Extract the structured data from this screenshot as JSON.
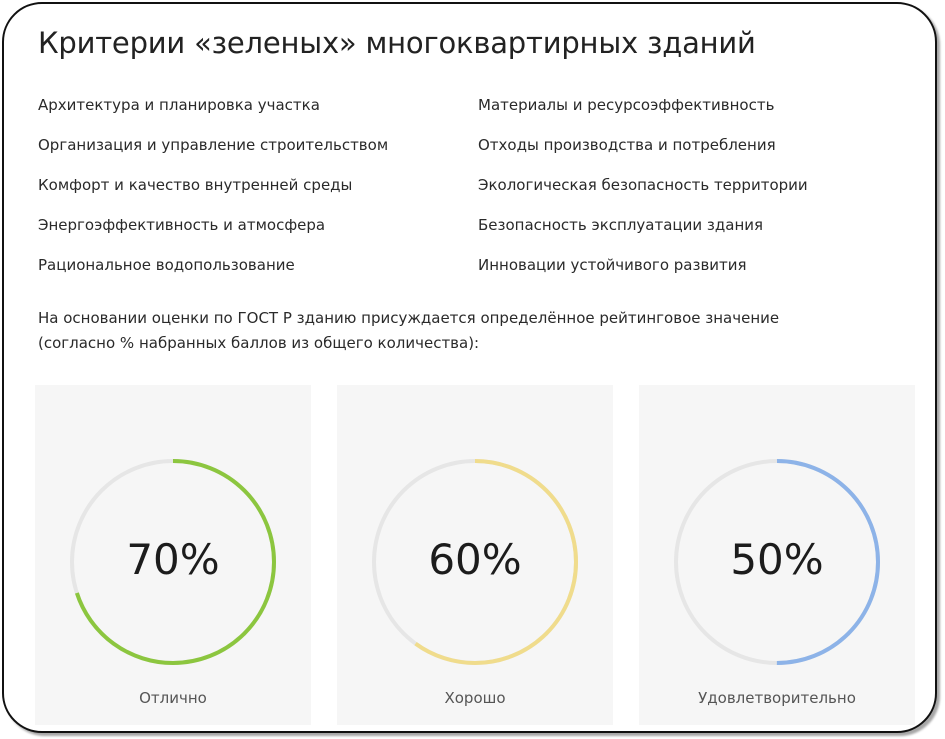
{
  "title": "Критерии «зеленых» многоквартирных зданий",
  "criteria_left": [
    "Архитектура и планировка участка",
    "Организация и управление строительством",
    "Комфорт и качество внутренней среды",
    "Энергоэффективность и атмосфера",
    "Рациональное водопользование"
  ],
  "criteria_right": [
    "Материалы и ресурсоэффективность",
    "Отходы производства и потребления",
    "Экологическая безопасность территории",
    "Безопасность эксплуатации здания",
    "Инновации устойчивого развития"
  ],
  "description": "На основании оценки по ГОСТ Р зданию присуждается определённое рейтинговое значение (согласно % набранных баллов из общего количества):",
  "ratings": [
    {
      "value": 0.7,
      "text": "70%",
      "label": "Отлично",
      "color": "#8cc63f"
    },
    {
      "value": 0.6,
      "text": "60%",
      "label": "Хорошо",
      "color": "#f0dc8c"
    },
    {
      "value": 0.5,
      "text": "50%",
      "label": "Удовлетворительно",
      "color": "#8db3e8"
    }
  ],
  "track_color": "#e6e6e6"
}
